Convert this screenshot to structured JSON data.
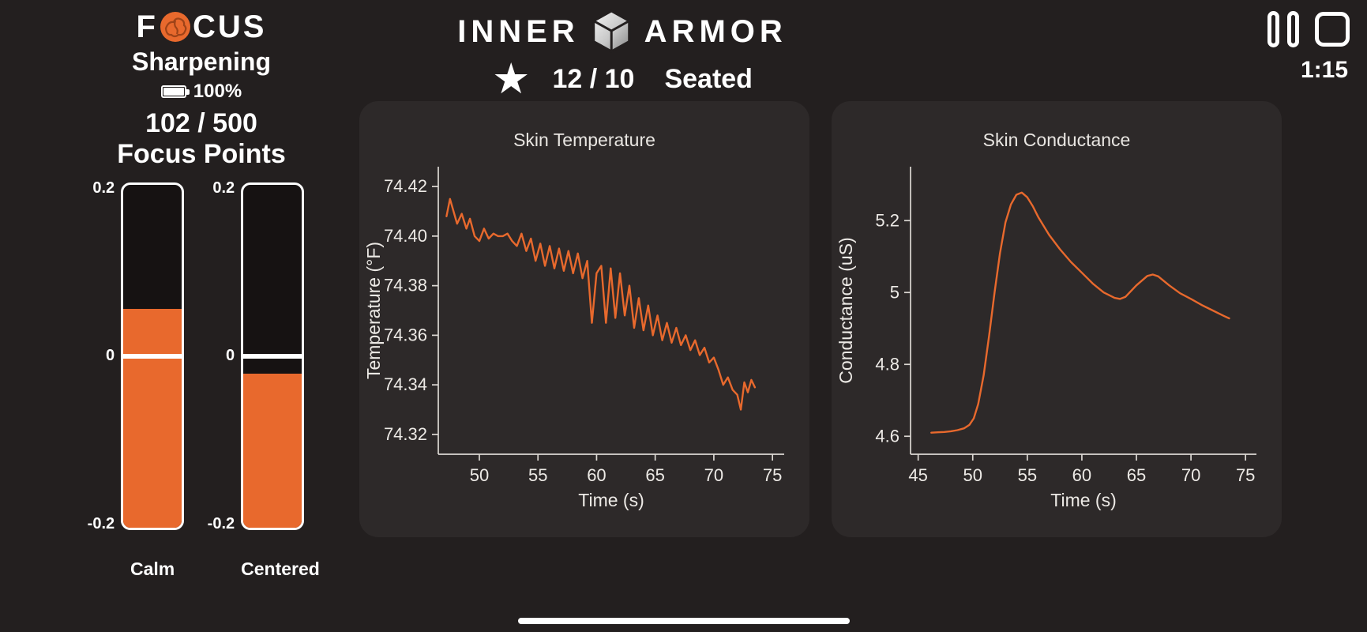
{
  "colors": {
    "accent": "#E8692D",
    "background": "#231F1F",
    "card": "#2D2929",
    "text": "#FFFFFF",
    "chart_text": "#EDEAE6"
  },
  "focus_panel": {
    "brand_prefix": "F",
    "brand_suffix": "CUS",
    "brain_icon": "brain-icon",
    "subtitle": "Sharpening",
    "battery_icon": "battery-full-icon",
    "battery_percent": "100%",
    "score": "102 / 500",
    "score_label": "Focus Points",
    "gauge_axis": {
      "top": "0.2",
      "zero": "0",
      "bottom": "-0.2"
    },
    "gauges": [
      {
        "label": "Calm",
        "value": 0.055,
        "min": -0.2,
        "max": 0.2
      },
      {
        "label": "Centered",
        "value": -0.02,
        "min": -0.2,
        "max": 0.2
      }
    ]
  },
  "header": {
    "brand_left": "INNER",
    "brand_right": "ARMOR",
    "cube_icon": "cube-icon",
    "star_icon": "★",
    "score": "12 / 10",
    "posture": "Seated"
  },
  "session": {
    "pause_icon": "pause-icon",
    "stop_icon": "stop-icon",
    "timer": "1:15"
  },
  "chart_data": [
    {
      "type": "line",
      "title": "Skin Temperature",
      "xlabel": "Time (s)",
      "ylabel": "Temperature (°F)",
      "xlim": [
        46.5,
        76
      ],
      "ylim": [
        74.312,
        74.428
      ],
      "xticks": [
        50,
        55,
        60,
        65,
        70,
        75
      ],
      "xtick_labels": [
        "50",
        "55",
        "60",
        "65",
        "70",
        "75"
      ],
      "yticks": [
        74.32,
        74.34,
        74.36,
        74.38,
        74.4,
        74.42
      ],
      "ytick_labels": [
        "74.32",
        "74.34",
        "74.36",
        "74.38",
        "74.40",
        "74.42"
      ],
      "line_color": "#E8692D",
      "grid": false,
      "legend": "none",
      "x": [
        47.2,
        47.5,
        47.8,
        48.1,
        48.5,
        48.9,
        49.2,
        49.6,
        50.0,
        50.4,
        50.8,
        51.2,
        51.6,
        52.0,
        52.4,
        52.8,
        53.2,
        53.6,
        54.0,
        54.4,
        54.8,
        55.2,
        55.6,
        56.0,
        56.4,
        56.8,
        57.2,
        57.6,
        58.0,
        58.4,
        58.8,
        59.2,
        59.6,
        60.0,
        60.4,
        60.8,
        61.2,
        61.6,
        62.0,
        62.4,
        62.8,
        63.2,
        63.6,
        64.0,
        64.4,
        64.8,
        65.2,
        65.6,
        66.0,
        66.4,
        66.8,
        67.2,
        67.6,
        68.0,
        68.4,
        68.8,
        69.2,
        69.6,
        70.0,
        70.4,
        70.8,
        71.2,
        71.6,
        72.0,
        72.3,
        72.6,
        72.9,
        73.2,
        73.5
      ],
      "y": [
        74.408,
        74.415,
        74.41,
        74.405,
        74.409,
        74.403,
        74.407,
        74.4,
        74.398,
        74.403,
        74.399,
        74.401,
        74.4,
        74.4,
        74.401,
        74.398,
        74.396,
        74.401,
        74.394,
        74.399,
        74.39,
        74.397,
        74.388,
        74.396,
        74.387,
        74.395,
        74.386,
        74.394,
        74.385,
        74.393,
        74.383,
        74.39,
        74.365,
        74.385,
        74.388,
        74.365,
        74.387,
        74.367,
        74.385,
        74.368,
        74.38,
        74.363,
        74.375,
        74.362,
        74.372,
        74.36,
        74.368,
        74.358,
        74.365,
        74.357,
        74.363,
        74.356,
        74.36,
        74.354,
        74.358,
        74.352,
        74.355,
        74.349,
        74.351,
        74.346,
        74.34,
        74.343,
        74.338,
        74.336,
        74.33,
        74.341,
        74.337,
        74.342,
        74.339
      ]
    },
    {
      "type": "line",
      "title": "Skin Conductance",
      "xlabel": "Time (s)",
      "ylabel": "Conductance (uS)",
      "xlim": [
        44.3,
        76
      ],
      "ylim": [
        4.55,
        5.35
      ],
      "xticks": [
        45,
        50,
        55,
        60,
        65,
        70,
        75
      ],
      "xtick_labels": [
        "45",
        "50",
        "55",
        "60",
        "65",
        "70",
        "75"
      ],
      "yticks": [
        4.6,
        4.8,
        5.0,
        5.2
      ],
      "ytick_labels": [
        "4.6",
        "4.8",
        "5",
        "5.2"
      ],
      "line_color": "#E8692D",
      "grid": false,
      "legend": "none",
      "x": [
        46.2,
        46.8,
        47.4,
        48.0,
        48.6,
        49.2,
        49.7,
        50.1,
        50.5,
        51.0,
        51.5,
        52.0,
        52.5,
        53.0,
        53.5,
        54.0,
        54.5,
        55.0,
        55.5,
        56.0,
        57.0,
        58.0,
        59.0,
        60.0,
        61.0,
        62.0,
        63.0,
        63.5,
        64.0,
        65.0,
        66.0,
        66.5,
        67.0,
        68.0,
        69.0,
        70.0,
        71.0,
        72.0,
        73.0,
        73.5
      ],
      "y": [
        4.61,
        4.611,
        4.612,
        4.614,
        4.617,
        4.622,
        4.632,
        4.65,
        4.69,
        4.77,
        4.88,
        5.0,
        5.11,
        5.195,
        5.245,
        5.272,
        5.278,
        5.265,
        5.24,
        5.21,
        5.16,
        5.12,
        5.085,
        5.055,
        5.025,
        5.0,
        4.985,
        4.982,
        4.988,
        5.02,
        5.046,
        5.05,
        5.045,
        5.02,
        4.998,
        4.982,
        4.965,
        4.95,
        4.935,
        4.928
      ]
    }
  ]
}
